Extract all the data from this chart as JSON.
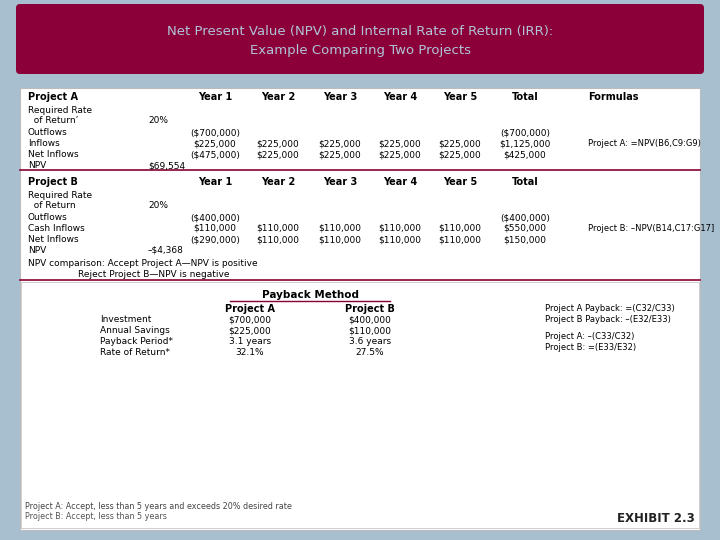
{
  "title_line1": "Net Present Value (NPV) and Internal Rate of Return (IRR):",
  "title_line2": "Example Comparing Two Projects",
  "title_bg": "#8B0038",
  "title_text_color": "#B0C4D8",
  "bg_color": "#A8BFD0",
  "table_bg": "#FFFFFF",
  "exhibit_text": "EXHIBIT 2.3",
  "payback_title": "Payback Method",
  "payback_rows": [
    [
      "Investment",
      "$700,000",
      "$400,000"
    ],
    [
      "Annual Savings",
      "$225,000",
      "$110,000"
    ],
    [
      "Payback Period*",
      "3.1 years",
      "3.6 years"
    ],
    [
      "Rate of Return*",
      "32.1%",
      "27.5%"
    ]
  ],
  "payback_formulas": [
    "Project A Payback: =(C32/C33)",
    "Project B Payback: –(E32/E33)",
    "Project A: –(C33/C32)",
    "Project B: =(E33/E32)"
  ],
  "footnotes": [
    "Project A: Accept, less than 5 years and exceeds 20% desired rate",
    "Project B: Accept, less than 5 years"
  ]
}
